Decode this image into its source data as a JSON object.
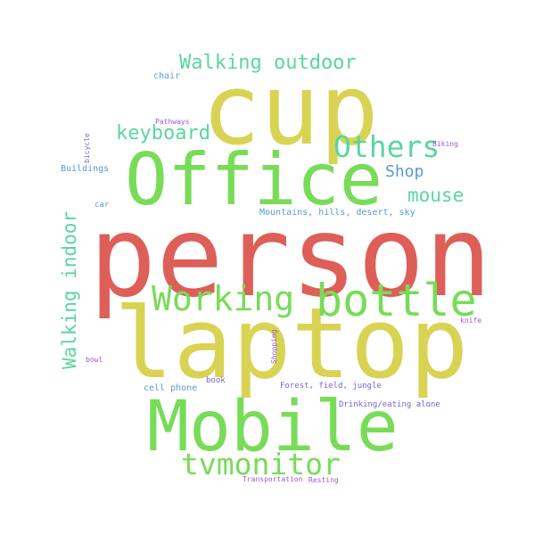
{
  "words": [
    {
      "text": "person",
      "color": "#dd5f58"
    },
    {
      "text": "cup",
      "color": "#d9d354"
    },
    {
      "text": "Office",
      "color": "#78dc58"
    },
    {
      "text": "laptop",
      "color": "#d9d354"
    },
    {
      "text": "Mobile",
      "color": "#78dc58"
    },
    {
      "text": "bottle",
      "color": "#78dc58"
    },
    {
      "text": "Working",
      "color": "#78dc58"
    },
    {
      "text": "tvmonitor",
      "color": "#78dc58"
    },
    {
      "text": "Others",
      "color": "#5ad6a0"
    },
    {
      "text": "Walking outdoor",
      "color": "#5ad6a0"
    },
    {
      "text": "keyboard",
      "color": "#5ad6a0"
    },
    {
      "text": "mouse",
      "color": "#5ad6a0"
    },
    {
      "text": "Walking indoor",
      "color": "#5ad6a0"
    },
    {
      "text": "Shop",
      "color": "#5a9ad0"
    },
    {
      "text": "chair",
      "color": "#5a9ad0"
    },
    {
      "text": "Buildings",
      "color": "#5a9ad0"
    },
    {
      "text": "car",
      "color": "#5a9ad0"
    },
    {
      "text": "Mountains, hills, desert, sky",
      "color": "#5a9ad0"
    },
    {
      "text": "cell phone",
      "color": "#5a9ad0"
    },
    {
      "text": "Forest, field, jungle",
      "color": "#7b62d0"
    },
    {
      "text": "book",
      "color": "#7b62d0"
    },
    {
      "text": "Drinking/eating alone",
      "color": "#7b62d0"
    },
    {
      "text": "Pathways",
      "color": "#9a5ad0"
    },
    {
      "text": "Biking",
      "color": "#9a5ad0"
    },
    {
      "text": "bicycle",
      "color": "#7b62d0"
    },
    {
      "text": "knife",
      "color": "#9a5ad0"
    },
    {
      "text": "Shopping",
      "color": "#9a5ad0"
    },
    {
      "text": "bowl",
      "color": "#9a5ad0"
    },
    {
      "text": "Transportation",
      "color": "#9a5ad0"
    },
    {
      "text": "Resting",
      "color": "#9a5ad0"
    }
  ]
}
